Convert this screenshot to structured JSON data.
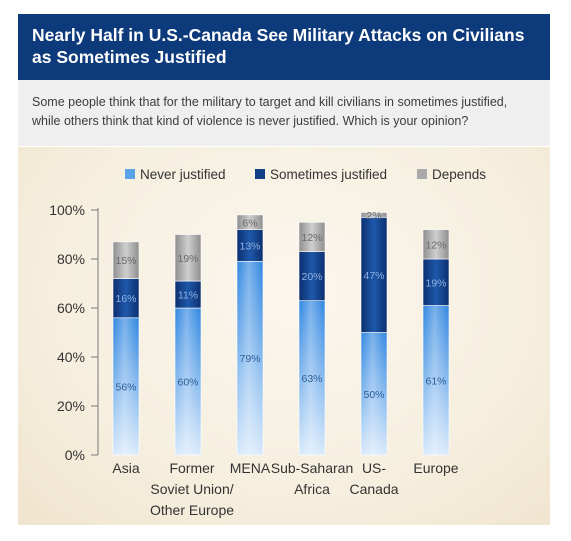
{
  "header": {
    "title": "Nearly Half in U.S.-Canada See Military Attacks on Civilians as Sometimes Justified"
  },
  "question": {
    "text": "Some people think that for the military to target and kill civilians in sometimes justified, while others think that kind of violence is never justified. Which is your opinion?"
  },
  "colors": {
    "never": "#5aa3e8",
    "sometimes": "#123e86",
    "depends": "#a9a9a9",
    "header_bg": "#0d3a7a"
  },
  "chart_data": {
    "type": "bar",
    "stacked": true,
    "categories": [
      [
        "Asia"
      ],
      [
        "Former",
        "Soviet Union/",
        "Other Europe"
      ],
      [
        "MENA"
      ],
      [
        "Sub-Saharan",
        "Africa"
      ],
      [
        "US-",
        "Canada"
      ],
      [
        "Europe"
      ]
    ],
    "series": [
      {
        "name": "Never justified",
        "values": [
          56,
          60,
          79,
          63,
          50,
          61
        ],
        "labels": [
          "56%",
          "60%",
          "79%",
          "63%",
          "50%",
          "61%"
        ]
      },
      {
        "name": "Sometimes justified",
        "values": [
          16,
          11,
          13,
          20,
          47,
          19
        ],
        "labels": [
          "16%",
          "11%",
          "13%",
          "20%",
          "47%",
          "19%"
        ]
      },
      {
        "name": "Depends",
        "values": [
          15,
          19,
          6,
          12,
          2,
          12
        ],
        "labels": [
          "15%",
          "19%",
          "6%",
          "12%",
          "2%",
          "12%"
        ]
      }
    ],
    "yticks": [
      "0%",
      "20%",
      "40%",
      "60%",
      "80%",
      "100%"
    ],
    "ylim": [
      0,
      100
    ],
    "legend_position": "top"
  }
}
